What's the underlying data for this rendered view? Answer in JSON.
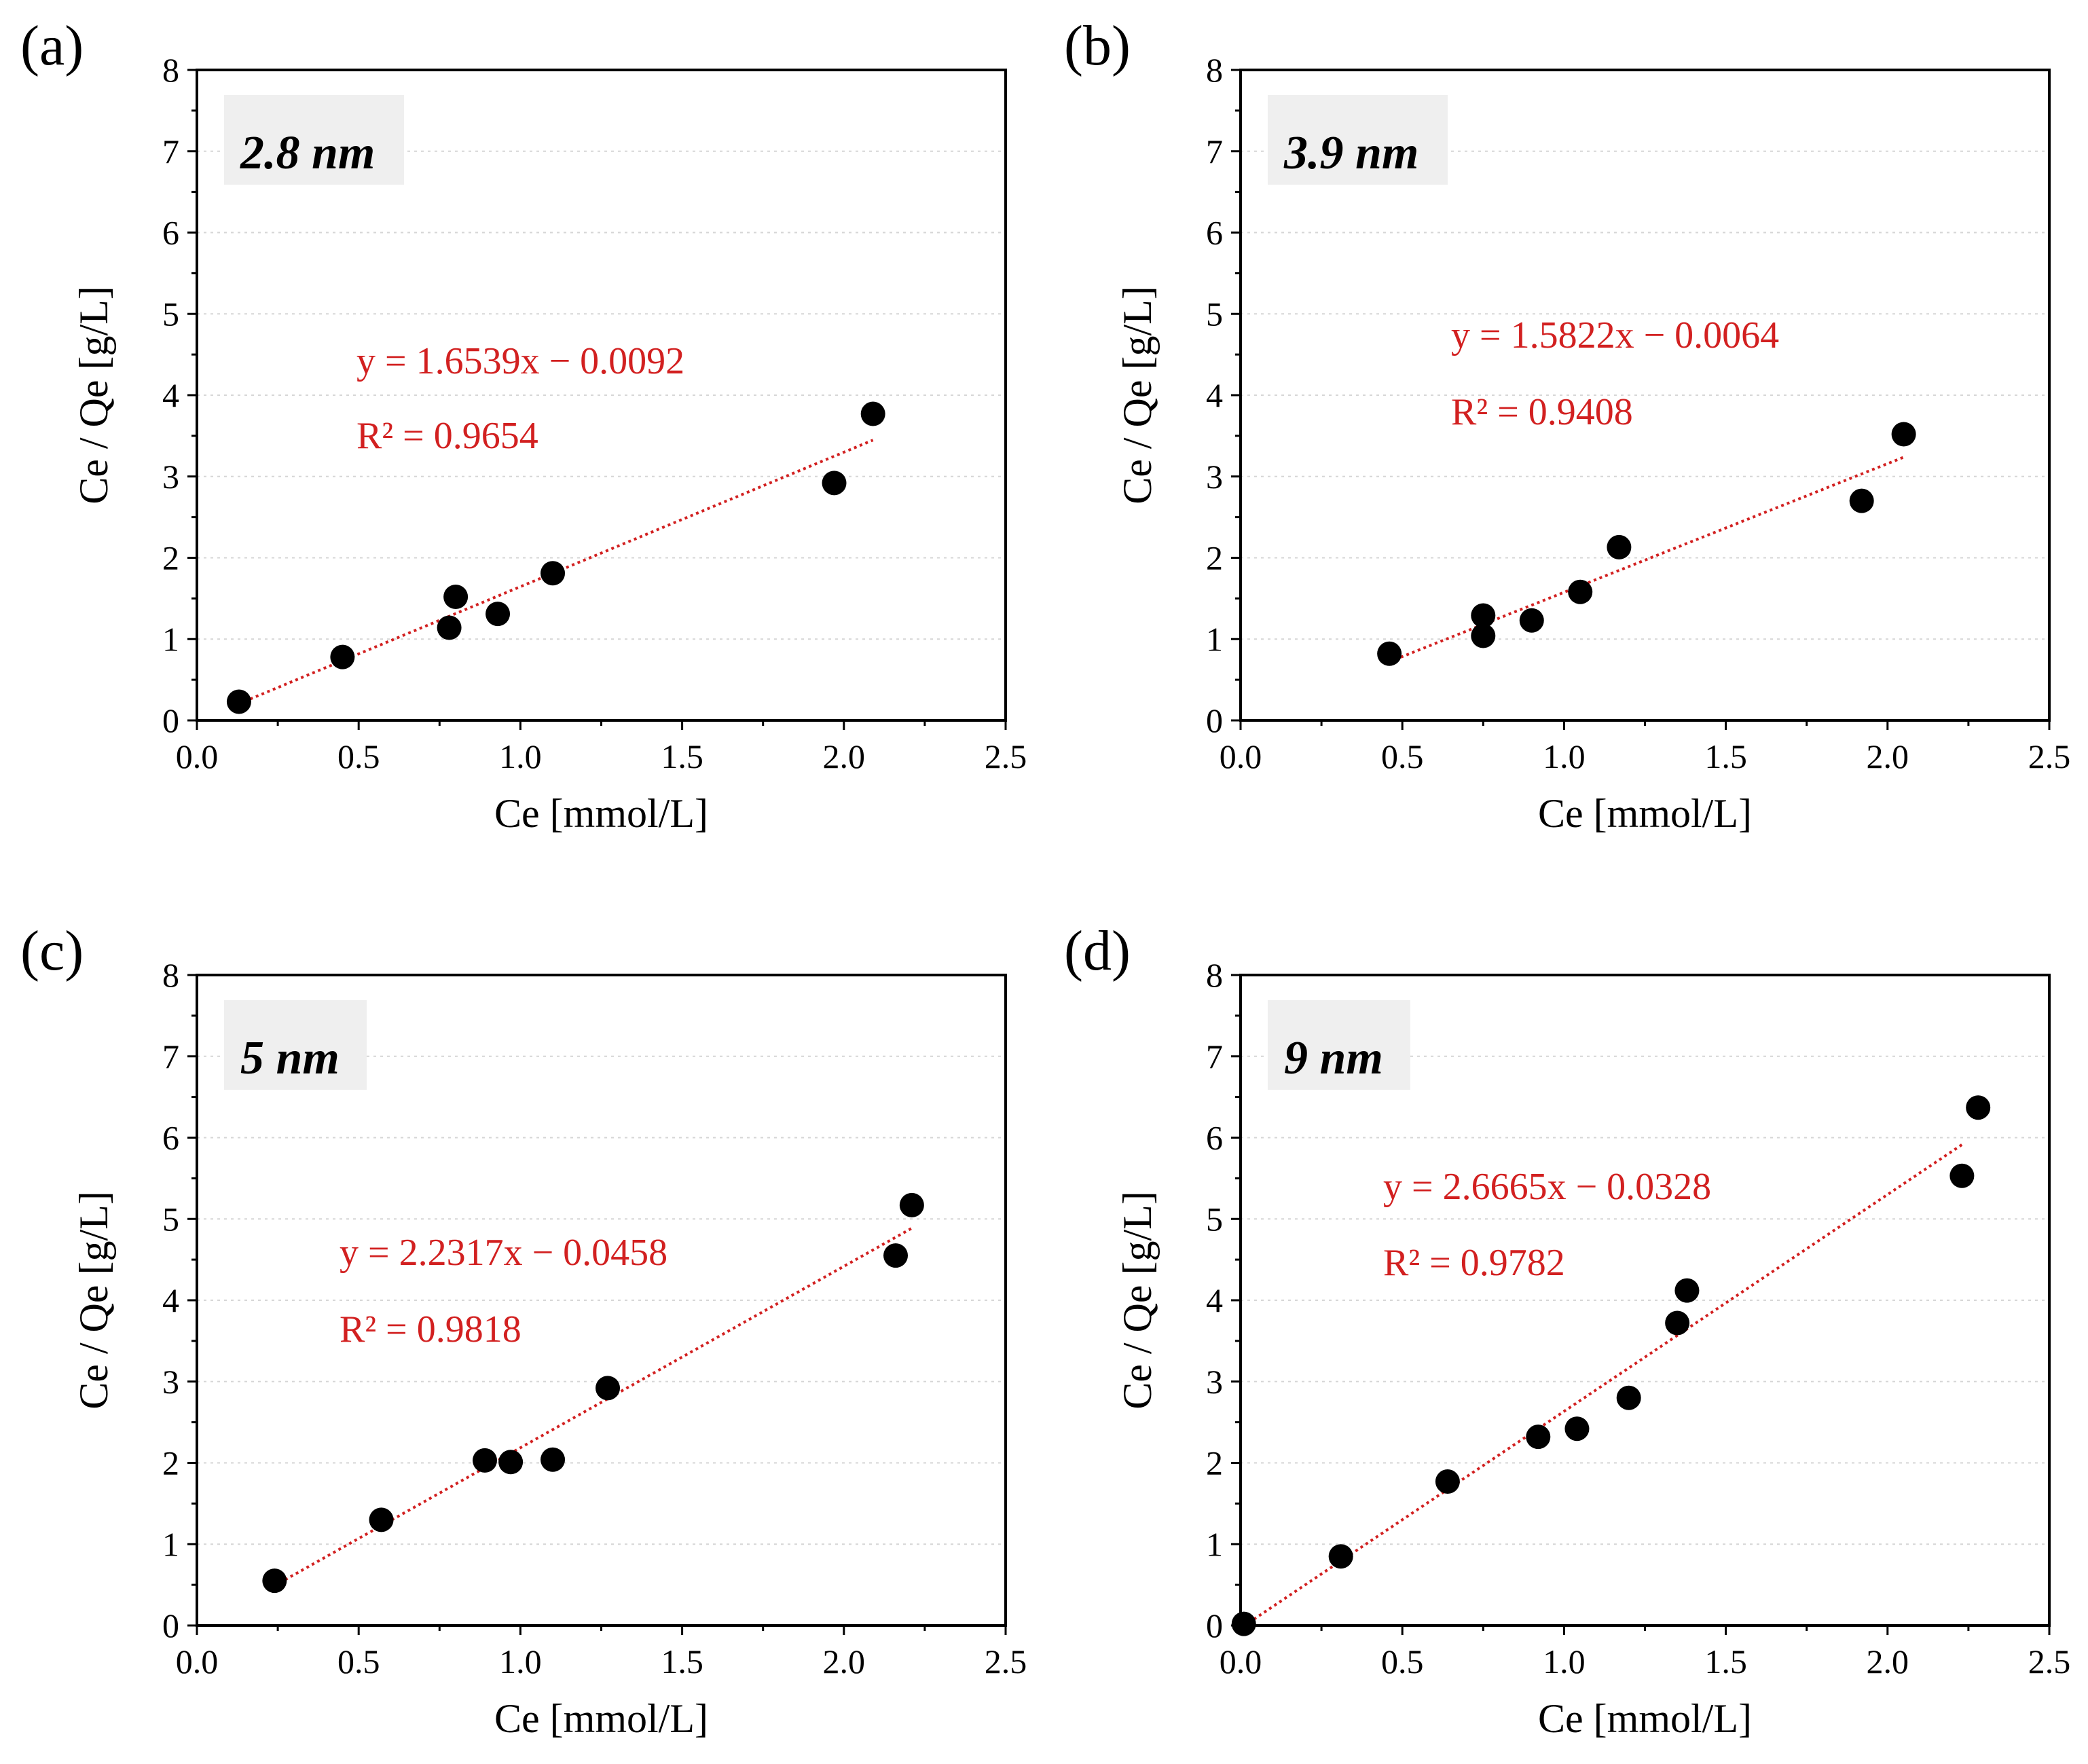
{
  "chart_data": [
    {
      "type": "scatter",
      "panel_label": "(a)",
      "annotation": "2.8 nm",
      "xlabel": "Ce [mmol/L]",
      "ylabel": "Ce / Qe [g/L]",
      "xlim": [
        0,
        2.5
      ],
      "ylim": [
        0,
        8
      ],
      "x_ticks": [
        "0.0",
        "0.5",
        "1.0",
        "1.5",
        "2.0",
        "2.5"
      ],
      "y_ticks": [
        "0",
        "1",
        "2",
        "3",
        "4",
        "5",
        "6",
        "7",
        "8"
      ],
      "x": [
        0.13,
        0.45,
        0.78,
        0.8,
        0.93,
        1.1,
        1.97,
        2.09
      ],
      "y": [
        0.23,
        0.78,
        1.14,
        1.52,
        1.31,
        1.81,
        2.92,
        3.77
      ],
      "fit": {
        "slope": 1.6539,
        "intercept": -0.0092,
        "x_range": [
          0.13,
          2.09
        ]
      },
      "equation": "y = 1.6539x − 0.0092",
      "r2": "R² = 0.9654"
    },
    {
      "type": "scatter",
      "panel_label": "(b)",
      "annotation": "3.9 nm",
      "xlabel": "Ce [mmol/L]",
      "ylabel": "Ce / Qe [g/L]",
      "xlim": [
        0,
        2.5
      ],
      "ylim": [
        0,
        8
      ],
      "x_ticks": [
        "0.0",
        "0.5",
        "1.0",
        "1.5",
        "2.0",
        "2.5"
      ],
      "y_ticks": [
        "0",
        "1",
        "2",
        "3",
        "4",
        "5",
        "6",
        "7",
        "8"
      ],
      "x": [
        0.46,
        0.75,
        0.75,
        0.9,
        1.05,
        1.17,
        1.92,
        2.05
      ],
      "y": [
        0.82,
        1.04,
        1.29,
        1.23,
        1.58,
        2.13,
        2.7,
        3.52
      ],
      "fit": {
        "slope": 1.5822,
        "intercept": -0.0064,
        "x_range": [
          0.46,
          2.05
        ]
      },
      "equation": "y = 1.5822x − 0.0064",
      "r2": "R² = 0.9408"
    },
    {
      "type": "scatter",
      "panel_label": "(c)",
      "annotation": "5 nm",
      "xlabel": "Ce [mmol/L]",
      "ylabel": "Ce / Qe [g/L]",
      "xlim": [
        0,
        2.5
      ],
      "ylim": [
        0,
        8
      ],
      "x_ticks": [
        "0.0",
        "0.5",
        "1.0",
        "1.5",
        "2.0",
        "2.5"
      ],
      "y_ticks": [
        "0",
        "1",
        "2",
        "3",
        "4",
        "5",
        "6",
        "7",
        "8"
      ],
      "x": [
        0.24,
        0.57,
        0.89,
        0.97,
        1.1,
        1.27,
        2.16,
        2.21
      ],
      "y": [
        0.55,
        1.3,
        2.03,
        2.01,
        2.04,
        2.92,
        4.55,
        5.17
      ],
      "fit": {
        "slope": 2.2317,
        "intercept": -0.0458,
        "x_range": [
          0.24,
          2.21
        ]
      },
      "equation": "y = 2.2317x − 0.0458",
      "r2": "R² = 0.9818"
    },
    {
      "type": "scatter",
      "panel_label": "(d)",
      "annotation": "9 nm",
      "xlabel": "Ce [mmol/L]",
      "ylabel": "Ce / Qe [g/L]",
      "xlim": [
        0,
        2.5
      ],
      "ylim": [
        0,
        8
      ],
      "x_ticks": [
        "0.0",
        "0.5",
        "1.0",
        "1.5",
        "2.0",
        "2.5"
      ],
      "y_ticks": [
        "0",
        "1",
        "2",
        "3",
        "4",
        "5",
        "6",
        "7",
        "8"
      ],
      "x": [
        0.01,
        0.31,
        0.64,
        0.92,
        1.04,
        1.2,
        1.35,
        1.38,
        2.23,
        2.28
      ],
      "y": [
        0.02,
        0.85,
        1.77,
        2.32,
        2.42,
        2.8,
        3.72,
        4.12,
        5.53,
        6.37
      ],
      "fit": {
        "slope": 2.6665,
        "intercept": -0.0328,
        "x_range": [
          0.01,
          2.23
        ]
      },
      "equation": "y = 2.6665x − 0.0328",
      "r2": "R² = 0.9782"
    }
  ]
}
